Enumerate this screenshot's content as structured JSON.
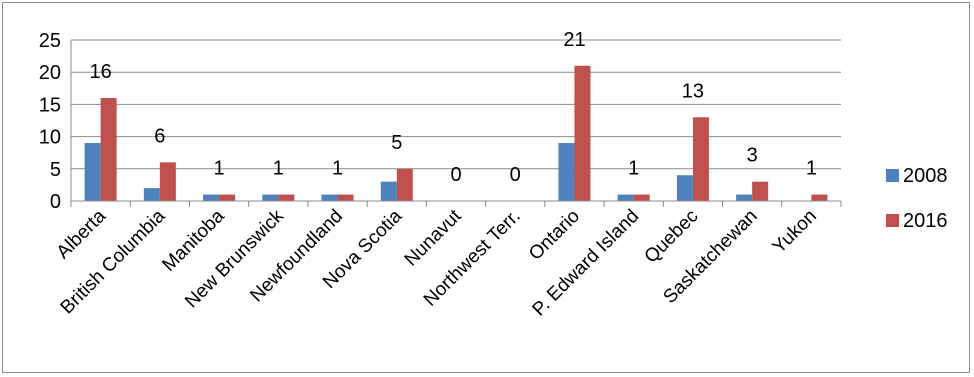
{
  "chart_data": {
    "type": "bar",
    "title": "",
    "xlabel": "",
    "ylabel": "",
    "categories": [
      "Alberta",
      "British Columbia",
      "Manitoba",
      "New Brunswick",
      "Newfoundland",
      "Nova Scotia",
      "Nunavut",
      "Northwest Terr.",
      "Ontario",
      "P. Edward Island",
      "Quebec",
      "Saskatchewan",
      "Yukon"
    ],
    "series": [
      {
        "name": "2008",
        "color": "#4f81bd",
        "values": [
          9,
          2,
          1,
          1,
          1,
          3,
          0,
          0,
          9,
          1,
          4,
          1,
          0
        ]
      },
      {
        "name": "2016",
        "color": "#c0504d",
        "values": [
          16,
          6,
          1,
          1,
          1,
          5,
          0,
          0,
          21,
          1,
          13,
          3,
          1
        ]
      }
    ],
    "data_labels_series": "2016",
    "ylim": [
      0,
      25
    ],
    "yticks": [
      0,
      5,
      10,
      15,
      20,
      25
    ],
    "grid": true,
    "legend_position": "right"
  }
}
